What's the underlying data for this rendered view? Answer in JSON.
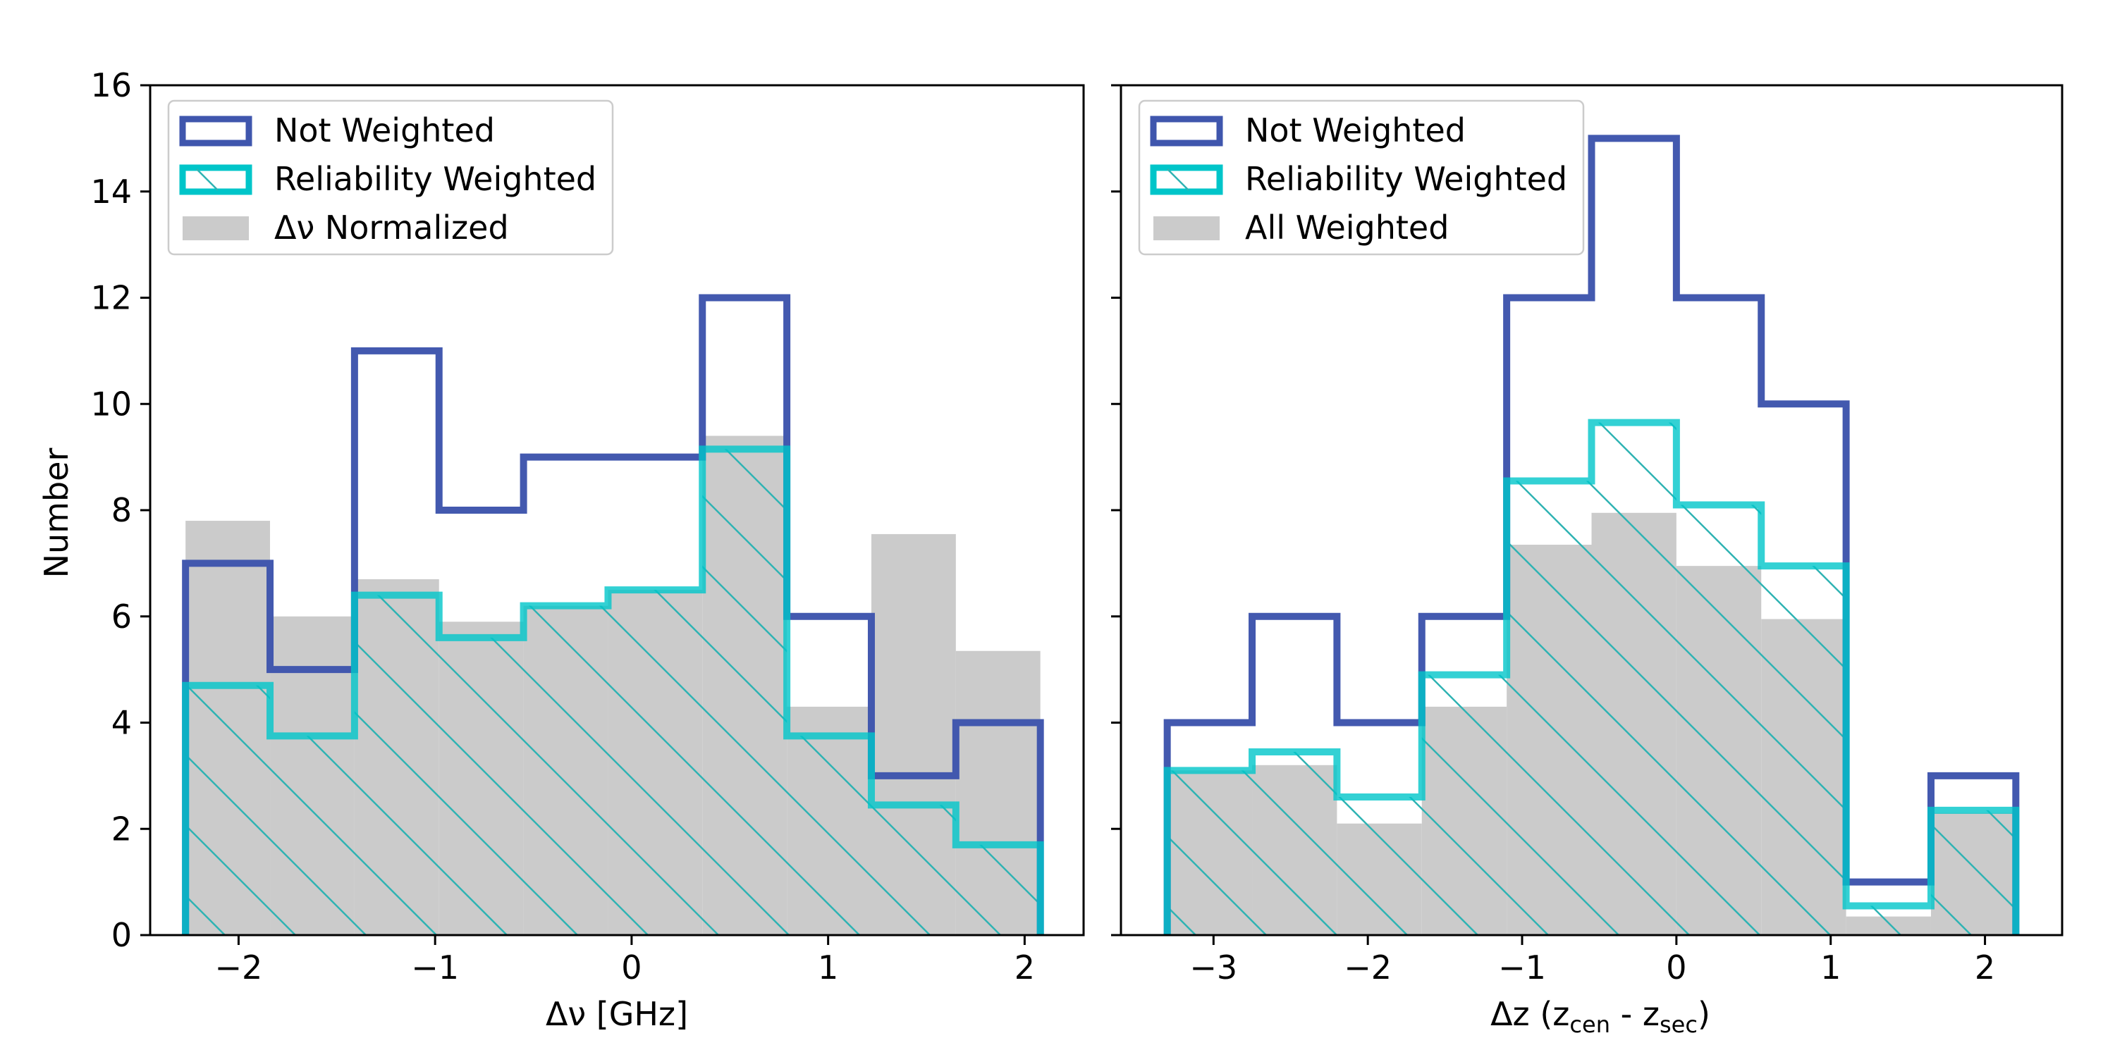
{
  "y_axis_label": "Number",
  "colors": {
    "not_weighted": "#3f56ad",
    "reliability_weighted": "#00c5c9",
    "hatch": "#2fb3b3",
    "gray_fill": "#cbcbcb"
  },
  "chart_data": [
    {
      "type": "histogram",
      "panel": "left",
      "xlabel": "Δν [GHz]",
      "ylabel": "Number",
      "xlim": [
        -2.45,
        2.3
      ],
      "ylim": [
        0,
        16
      ],
      "xticks": [
        -2,
        -1,
        0,
        1,
        2
      ],
      "xtick_labels": [
        "−2",
        "−1",
        "0",
        "1",
        "2"
      ],
      "yticks": [
        0,
        2,
        4,
        6,
        8,
        10,
        12,
        14,
        16
      ],
      "ytick_labels": [
        "0",
        "2",
        "4",
        "6",
        "8",
        "10",
        "12",
        "14",
        "16"
      ],
      "bin_edges": [
        -2.27,
        -1.84,
        -1.41,
        -0.98,
        -0.55,
        -0.12,
        0.36,
        0.79,
        1.22,
        1.65,
        2.08
      ],
      "series": [
        {
          "name": "Not Weighted",
          "style": "step",
          "values": [
            7,
            5,
            11,
            8,
            9,
            9,
            12,
            6,
            3,
            4
          ]
        },
        {
          "name": "Reliability Weighted",
          "style": "step-hatched",
          "values": [
            4.7,
            3.75,
            6.4,
            5.6,
            6.2,
            6.5,
            9.15,
            3.75,
            2.45,
            1.7
          ]
        },
        {
          "name": "Δν Normalized",
          "style": "filled",
          "values": [
            7.8,
            6.0,
            6.7,
            5.9,
            6.2,
            6.5,
            9.4,
            4.3,
            7.55,
            5.35
          ]
        }
      ],
      "legend": {
        "position": "upper-left",
        "entries": [
          "Not Weighted",
          "Reliability Weighted",
          "Δν Normalized"
        ]
      }
    },
    {
      "type": "histogram",
      "panel": "right",
      "xlabel": "Δz (z",
      "xlabel_sub1": "cen",
      "xlabel_mid": " - z",
      "xlabel_sub2": "sec",
      "xlabel_end": ")",
      "xlim": [
        -3.6,
        2.5
      ],
      "ylim": [
        0,
        16
      ],
      "xticks": [
        -3,
        -2,
        -1,
        0,
        1,
        2
      ],
      "xtick_labels": [
        "−3",
        "−2",
        "−1",
        "0",
        "1",
        "2"
      ],
      "yticks": [
        0,
        2,
        4,
        6,
        8,
        10,
        12,
        14,
        16
      ],
      "bin_edges": [
        -3.3,
        -2.75,
        -2.2,
        -1.65,
        -1.1,
        -0.55,
        0.0,
        0.55,
        1.1,
        1.65,
        2.2
      ],
      "series": [
        {
          "name": "Not Weighted",
          "style": "step",
          "values": [
            4,
            6,
            4,
            6,
            12,
            15,
            12,
            10,
            1,
            3
          ]
        },
        {
          "name": "Reliability Weighted",
          "style": "step-hatched",
          "values": [
            3.1,
            3.45,
            2.6,
            4.9,
            8.55,
            9.65,
            8.1,
            6.95,
            0.55,
            2.35
          ]
        },
        {
          "name": "All Weighted",
          "style": "filled",
          "values": [
            3.1,
            3.2,
            2.1,
            4.3,
            7.35,
            7.95,
            6.95,
            5.95,
            0.35,
            2.3
          ]
        }
      ],
      "legend": {
        "position": "upper-left",
        "entries": [
          "Not Weighted",
          "Reliability Weighted",
          "All Weighted"
        ]
      }
    }
  ]
}
